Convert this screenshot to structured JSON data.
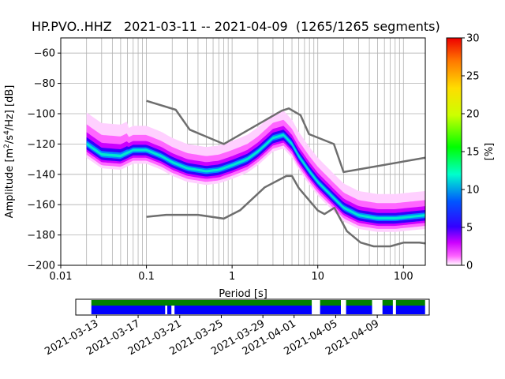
{
  "title": "HP.PVO..HHZ   2021-03-11 -- 2021-04-09  (1265/1265 segments)",
  "colors": {
    "nlnm_nhnm": "#6e6e6e",
    "grid": "#b0b0b0",
    "coverage_green": "#008000",
    "coverage_blue": "#0000ff"
  },
  "chart_data": [
    {
      "type": "heatmap",
      "title": "HP.PVO..HHZ   2021-03-11 -- 2021-04-09  (1265/1265 segments)",
      "xlabel": "Period [s]",
      "ylabel": "Amplitude [m²/s⁴/Hz] [dB]",
      "ylabel_parts": [
        "Amplitude [m",
        "2",
        "/s",
        "4",
        "/Hz] [dB]"
      ],
      "xscale": "log",
      "xlim": [
        0.01,
        180
      ],
      "ylim": [
        -200,
        -50
      ],
      "x_ticks": [
        0.01,
        0.1,
        1,
        10,
        100
      ],
      "x_tick_labels": [
        "0.01",
        "0.1",
        "1",
        "10",
        "100"
      ],
      "y_ticks": [
        -200,
        -180,
        -160,
        -140,
        -120,
        -100,
        -80,
        -60
      ],
      "y_tick_labels": [
        "−200",
        "−180",
        "−160",
        "−140",
        "−120",
        "−100",
        "−80",
        "−60"
      ],
      "grid": true,
      "mode_curve": {
        "x": [
          0.02,
          0.03,
          0.05,
          0.07,
          0.1,
          0.15,
          0.2,
          0.3,
          0.5,
          0.7,
          1,
          1.5,
          2,
          3,
          4,
          5,
          6,
          8,
          10,
          15,
          20,
          30,
          50,
          80,
          120,
          180
        ],
        "y": [
          -120,
          -127,
          -128,
          -124,
          -124,
          -128,
          -132,
          -136,
          -138,
          -137,
          -134,
          -130,
          -125,
          -116,
          -114,
          -120,
          -128,
          -138,
          -145,
          -155,
          -162,
          -167,
          -169,
          -169,
          -168,
          -167
        ]
      },
      "colorbar": {
        "label": "[%]",
        "min": 0,
        "max": 30,
        "ticks": [
          0,
          5,
          10,
          15,
          20,
          25,
          30
        ],
        "tick_labels": [
          "0",
          "5",
          "10",
          "15",
          "20",
          "25",
          "30"
        ]
      },
      "noise_models": [
        {
          "name": "NHNM",
          "x": [
            0.1,
            0.22,
            0.32,
            0.8,
            3.8,
            4.6,
            6.3,
            7.9,
            15.4,
            20,
            180
          ],
          "y": [
            -91.5,
            -97.4,
            -110.5,
            -120,
            -98,
            -96.5,
            -101,
            -113.5,
            -120,
            -138.5,
            -129
          ]
        },
        {
          "name": "NLNM",
          "x": [
            0.1,
            0.17,
            0.4,
            0.8,
            1.24,
            2.4,
            4.3,
            5,
            6,
            10,
            12,
            15.6,
            21.9,
            31.6,
            45,
            70,
            101,
            154,
            180
          ],
          "y": [
            -168,
            -166.7,
            -166.7,
            -169.2,
            -163.7,
            -148.6,
            -141.1,
            -141.1,
            -149,
            -163.8,
            -166.2,
            -162.1,
            -177.5,
            -185,
            -187.5,
            -187.5,
            -185,
            -185,
            -185.5
          ]
        }
      ]
    },
    {
      "type": "timeline",
      "x_tick_labels": [
        "2021-03-13",
        "2021-03-17",
        "2021-03-21",
        "2021-03-25",
        "2021-03-29",
        "2021-04-01",
        "2021-04-05",
        "2021-04-09"
      ],
      "x_ticks": [
        "2021-03-13",
        "2021-03-17",
        "2021-03-21",
        "2021-03-25",
        "2021-03-29",
        "2021-04-01",
        "2021-04-05",
        "2021-04-09"
      ],
      "xlim": [
        "2021-03-11",
        "2021-04-14"
      ],
      "data_segments": [
        [
          "2021-03-12.5",
          "2021-04-02.7"
        ],
        [
          "2021-04-03.5",
          "2021-04-05.5"
        ],
        [
          "2021-04-06.0",
          "2021-04-08.5"
        ],
        [
          "2021-04-09.5",
          "2021-04-10.5"
        ],
        [
          "2021-04-10.8",
          "2021-04-13.6"
        ]
      ],
      "psd_segments": [
        [
          "2021-03-12.5",
          "2021-03-19.6"
        ],
        [
          "2021-03-19.8",
          "2021-03-20.2"
        ],
        [
          "2021-03-20.5",
          "2021-04-02.7"
        ],
        [
          "2021-04-03.5",
          "2021-04-05.5"
        ],
        [
          "2021-04-06.0",
          "2021-04-08.5"
        ],
        [
          "2021-04-09.5",
          "2021-04-10.5"
        ],
        [
          "2021-04-10.8",
          "2021-04-13.6"
        ]
      ]
    }
  ]
}
